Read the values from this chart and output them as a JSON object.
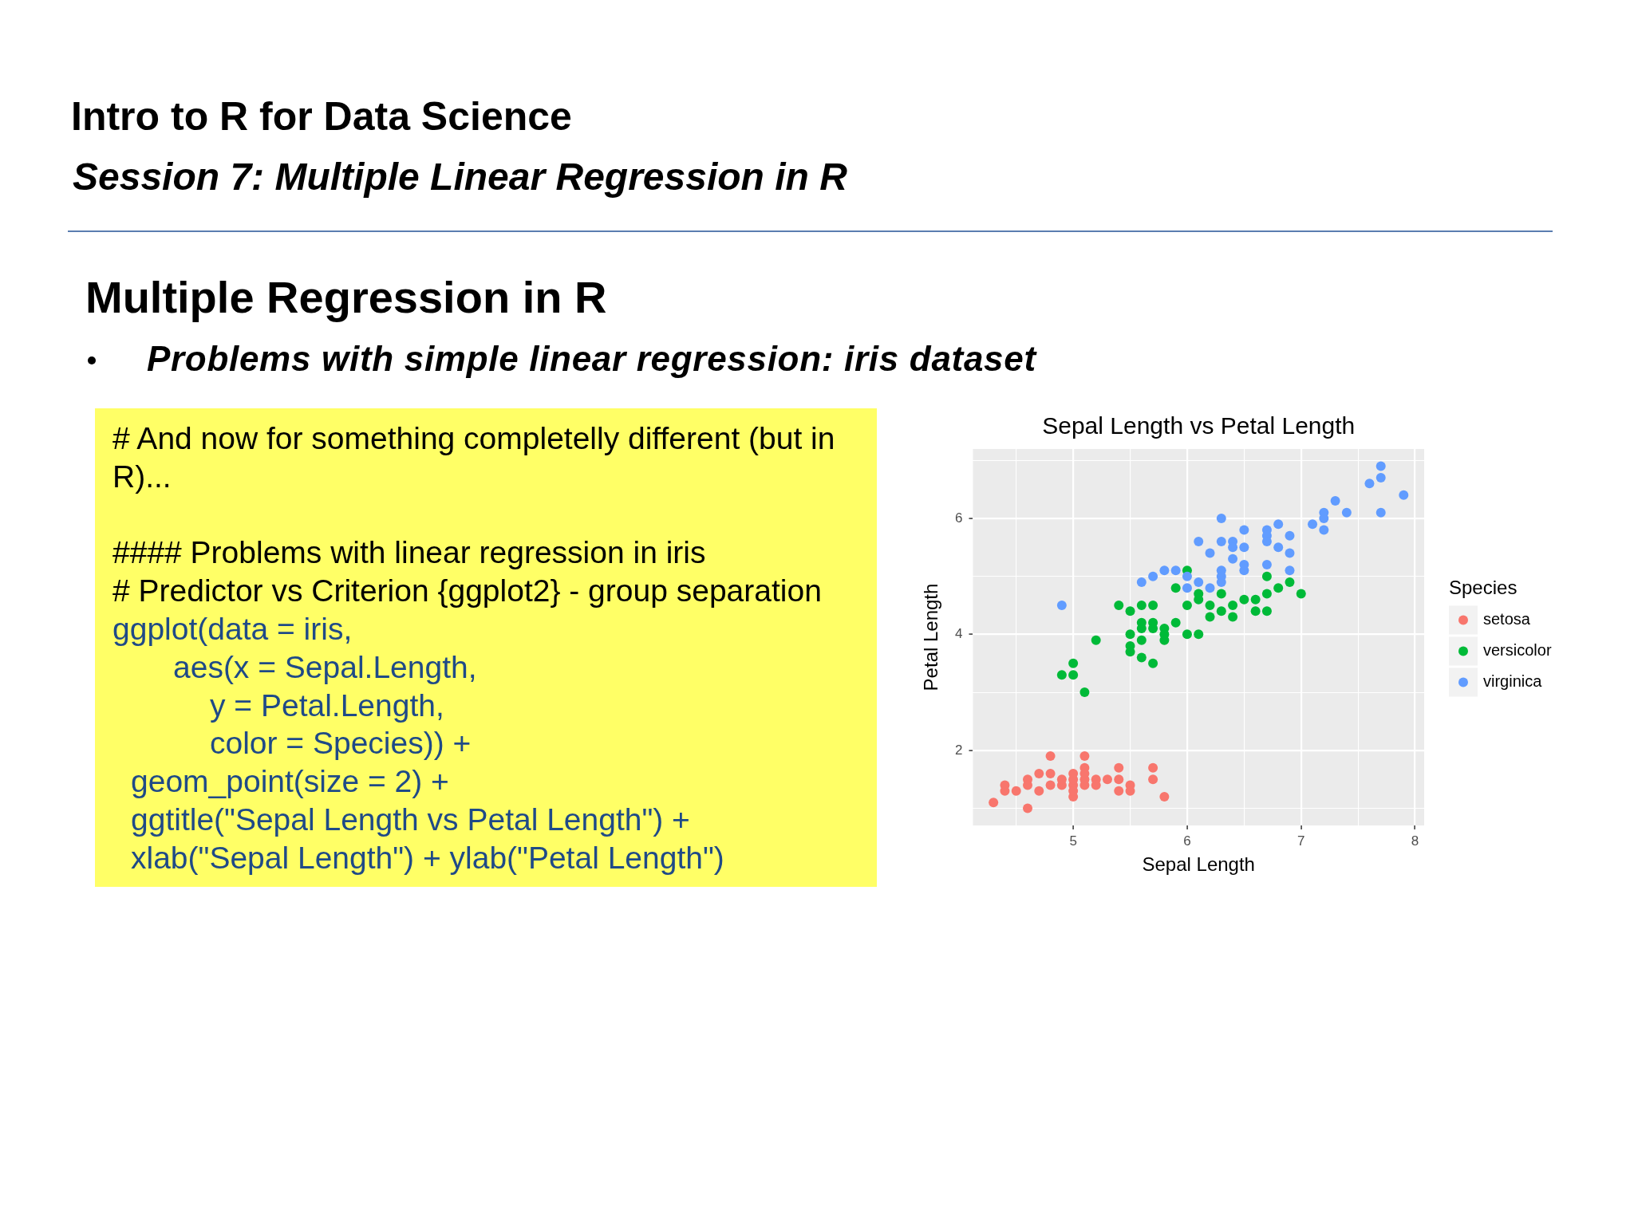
{
  "chart_data": {
    "type": "scatter",
    "title": "Sepal Length vs Petal Length",
    "xlabel": "Sepal Length",
    "ylabel": "Petal Length",
    "legend_title": "Species",
    "legend": "right",
    "grid": true,
    "marker": "circle",
    "xlim": [
      4.12,
      8.08
    ],
    "ylim": [
      0.705,
      7.195
    ],
    "xticks": [
      {
        "value": 4.5,
        "label": null
      },
      5,
      {
        "value": 5.5,
        "label": null
      },
      6,
      {
        "value": 6.5,
        "label": null
      },
      7,
      {
        "value": 7.5,
        "label": null
      },
      8
    ],
    "yticks": [
      {
        "value": 1,
        "label": null
      },
      2,
      {
        "value": 3,
        "label": null
      },
      4,
      {
        "value": 5,
        "label": null
      },
      6,
      {
        "value": 7,
        "label": null
      }
    ],
    "series": [
      {
        "name": "setosa",
        "color": "#f8766d",
        "x": [
          5.1,
          4.9,
          4.7,
          4.6,
          5.0,
          5.4,
          4.6,
          5.0,
          4.4,
          4.9,
          5.4,
          4.8,
          4.8,
          4.3,
          5.8,
          5.7,
          5.4,
          5.7,
          5.1,
          4.6,
          5.1,
          4.8,
          5.0,
          5.2,
          5.2,
          4.7,
          5.5,
          5.0,
          5.5,
          4.4,
          5.0,
          4.5,
          5.1,
          5.1,
          5.3
        ],
        "values": [
          1.4,
          1.4,
          1.3,
          1.5,
          1.4,
          1.7,
          1.4,
          1.5,
          1.4,
          1.5,
          1.5,
          1.6,
          1.4,
          1.1,
          1.2,
          1.5,
          1.3,
          1.7,
          1.5,
          1.0,
          1.7,
          1.9,
          1.6,
          1.5,
          1.4,
          1.6,
          1.4,
          1.2,
          1.3,
          1.3,
          1.3,
          1.3,
          1.9,
          1.6,
          1.5
        ]
      },
      {
        "name": "versicolor",
        "color": "#00ba38",
        "x": [
          7.0,
          6.4,
          6.9,
          5.5,
          6.5,
          5.7,
          6.3,
          4.9,
          6.6,
          5.2,
          5.0,
          5.9,
          6.0,
          6.1,
          5.6,
          6.7,
          5.6,
          5.8,
          6.2,
          5.6,
          5.9,
          6.1,
          6.4,
          6.6,
          6.8,
          6.7,
          6.0,
          5.7,
          5.5,
          5.5,
          5.8,
          6.0,
          5.4,
          6.7,
          6.3,
          5.6,
          5.5,
          6.1,
          5.8,
          5.0,
          5.6,
          5.7,
          6.2,
          5.1,
          5.7
        ],
        "values": [
          4.7,
          4.5,
          4.9,
          4.0,
          4.6,
          4.5,
          4.7,
          3.3,
          4.6,
          3.9,
          3.5,
          4.2,
          4.0,
          4.7,
          3.6,
          4.4,
          4.5,
          4.1,
          4.5,
          3.9,
          4.8,
          4.0,
          4.3,
          4.4,
          4.8,
          5.0,
          4.5,
          3.5,
          3.8,
          3.7,
          3.9,
          5.1,
          4.5,
          4.7,
          4.4,
          4.1,
          4.4,
          4.6,
          4.0,
          3.3,
          4.2,
          4.2,
          4.3,
          3.0,
          4.1
        ]
      },
      {
        "name": "virginica",
        "color": "#619cff",
        "x": [
          6.3,
          5.8,
          7.1,
          6.3,
          6.5,
          7.6,
          4.9,
          7.3,
          6.7,
          7.2,
          6.5,
          6.4,
          6.8,
          5.7,
          6.5,
          7.7,
          7.7,
          6.0,
          6.9,
          5.6,
          6.3,
          6.7,
          7.2,
          6.2,
          6.1,
          6.4,
          7.2,
          7.4,
          7.9,
          6.3,
          6.1,
          7.7,
          6.4,
          6.0,
          6.9,
          6.7,
          6.9,
          6.8,
          6.7,
          6.3,
          6.5,
          6.2,
          5.9
        ],
        "values": [
          6.0,
          5.1,
          5.9,
          5.6,
          5.8,
          6.6,
          4.5,
          6.3,
          5.8,
          6.1,
          5.1,
          5.3,
          5.5,
          5.0,
          5.5,
          6.7,
          6.9,
          5.0,
          5.7,
          4.9,
          4.9,
          5.7,
          6.0,
          4.8,
          4.9,
          5.6,
          5.8,
          6.1,
          6.4,
          5.1,
          5.6,
          6.1,
          5.5,
          4.8,
          5.4,
          5.6,
          5.1,
          5.9,
          5.2,
          5.0,
          5.2,
          5.4,
          5.1
        ]
      }
    ],
    "annotations": [
      "Intro to R for Data Science",
      "Session 7: Multiple Linear Regression in R",
      "Multiple Regression in R",
      "Problems with simple linear regression: iris dataset",
      "# And now for something completelly different (but in R)...",
      "#### Problems with linear regression in iris",
      "# Predictor vs Criterion {ggplot2} - group separation",
      "ggplot(data = iris,",
      "aes(x = Sepal.Length,",
      "y = Petal.Length,",
      "color = Species)) +",
      "geom_point(size = 2) +",
      "ggtitle(\"Sepal Length vs Petal Length\") +",
      "xlab(\"Sepal Length\") + ylab(\"Petal Length\")"
    ]
  }
}
